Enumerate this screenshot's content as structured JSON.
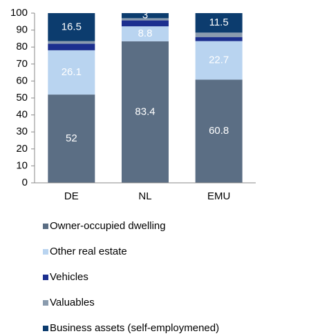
{
  "chart_data": {
    "type": "stacked_bar",
    "categories": [
      "DE",
      "NL",
      "EMU"
    ],
    "series": [
      {
        "name": "Owner-occupied dwelling",
        "color": "#5b6e84",
        "values": [
          52,
          83.4,
          60.8
        ],
        "show_labels": true
      },
      {
        "name": "Other real estate",
        "color": "#b9d4f0",
        "values": [
          26.1,
          8.8,
          22.7
        ],
        "show_labels": true
      },
      {
        "name": "Vehicles",
        "color": "#1c2f8f",
        "values": [
          3.9,
          3.5,
          2.4
        ],
        "show_labels": false
      },
      {
        "name": "Valuables",
        "color": "#8a9bae",
        "values": [
          1.5,
          1.3,
          2.6
        ],
        "show_labels": false
      },
      {
        "name": "Business assets (self-employmened)",
        "color": "#0c3c6e",
        "values": [
          16.5,
          3,
          11.5
        ],
        "show_labels": true
      }
    ],
    "ylim": [
      0,
      100
    ],
    "yticks": [
      0,
      10,
      20,
      30,
      40,
      50,
      60,
      70,
      80,
      90,
      100
    ],
    "grid": false
  }
}
